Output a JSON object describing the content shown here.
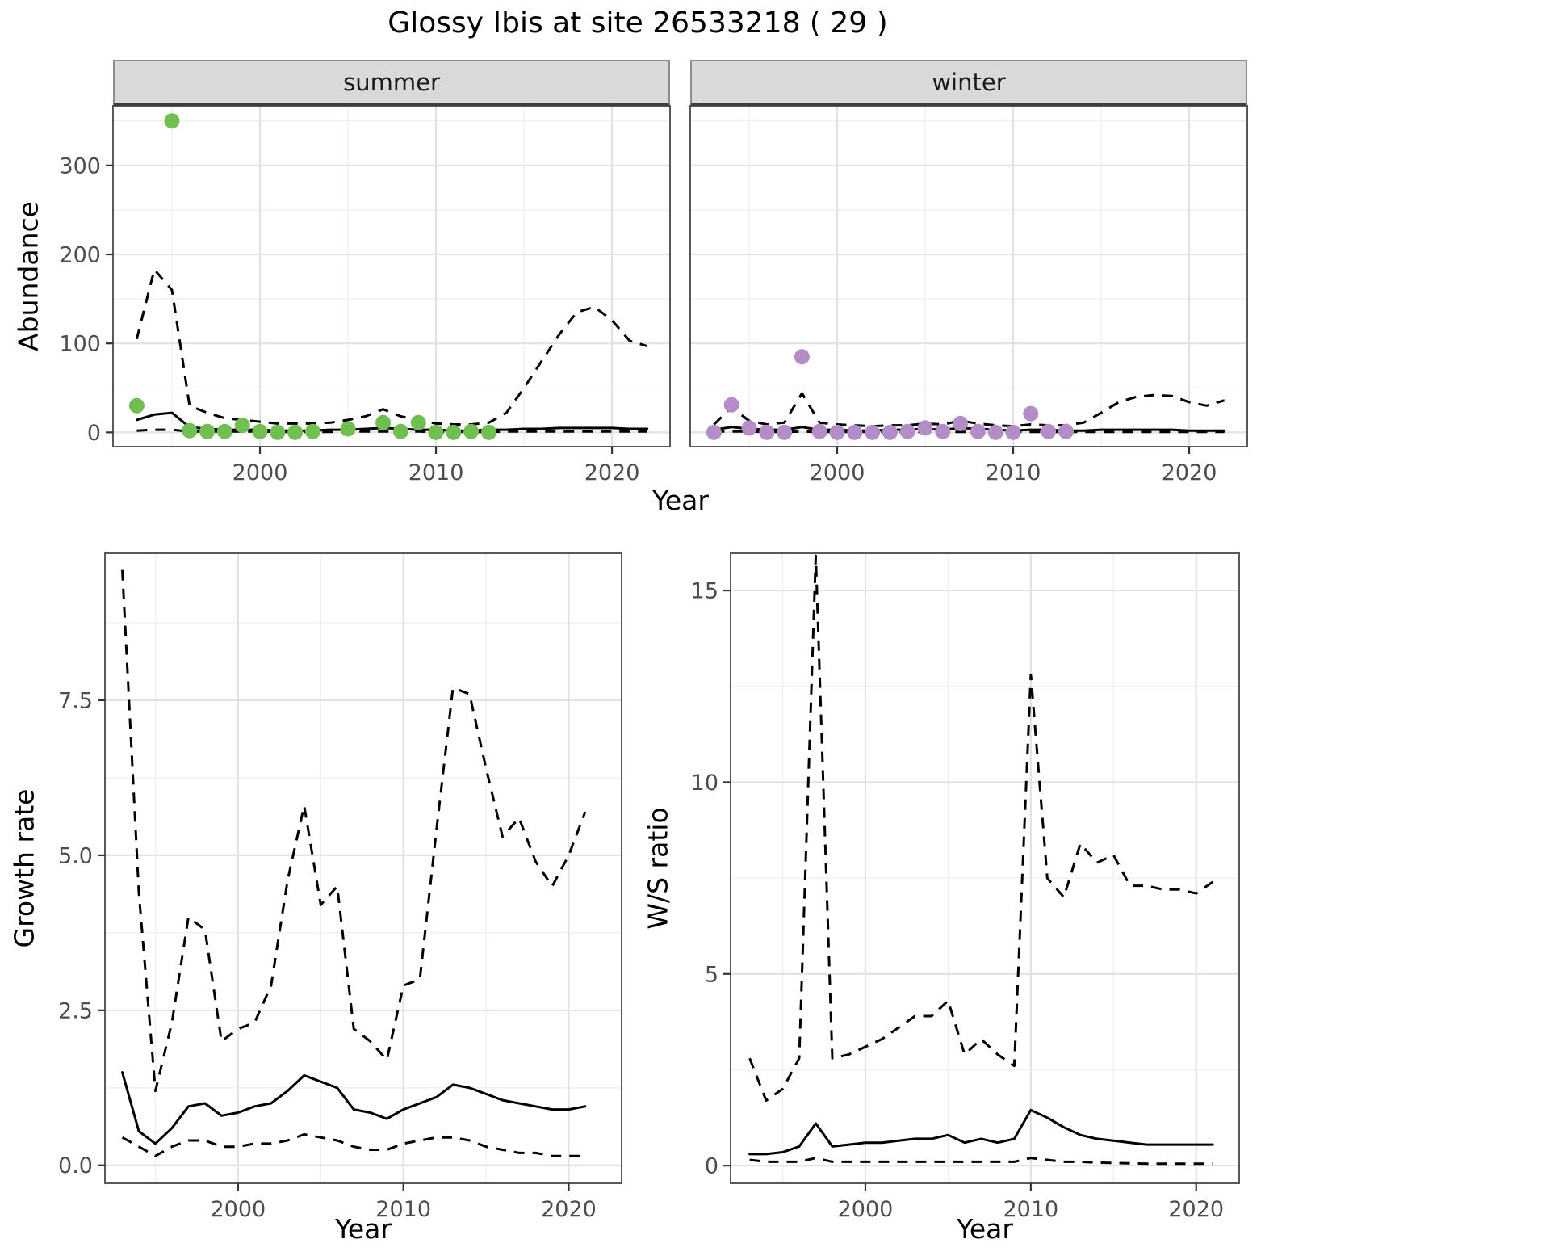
{
  "title": "Glossy Ibis at site 26533218 ( 29 )",
  "abundance": {
    "ylabel": "Abundance",
    "xlabel": "Year",
    "facets": [
      {
        "label": "summer"
      },
      {
        "label": "winter"
      }
    ]
  },
  "growth": {
    "ylabel": "Growth rate",
    "xlabel": "Year"
  },
  "ws": {
    "ylabel": "W/S ratio",
    "xlabel": "Year"
  },
  "colors": {
    "summer_points": "#70bf50",
    "winter_points": "#b48cc8",
    "fit_line": "#000000",
    "ci_line": "#000000",
    "strip_background": "#d9d9d9",
    "panel_border": "#595959",
    "grid_major": "#e2e2e2",
    "grid_minor": "#f0f0f0",
    "axis_text": "#4d4d4d"
  },
  "chart_data": [
    {
      "id": "abundance-summer",
      "type": "scatter",
      "facet": "summer",
      "xlabel": "Year",
      "ylabel": "Abundance",
      "xlim": [
        1991.65,
        2023.3
      ],
      "ylim": [
        -16,
        367
      ],
      "xticks": [
        2000,
        2010,
        2020
      ],
      "xtick_labels": [
        "2000",
        "2010",
        "2020"
      ],
      "xticks_minor": [
        1995,
        2005,
        2015
      ],
      "yticks": [
        0,
        100,
        200,
        300
      ],
      "ytick_labels": [
        "0",
        "100",
        "200",
        "300"
      ],
      "yticks_minor": [
        50,
        150,
        250,
        350
      ],
      "grid": "major+minor",
      "legend": "none",
      "point_color": "#70bf50",
      "x": [
        1993,
        1994,
        1995,
        1996,
        1997,
        1998,
        1999,
        2000,
        2001,
        2002,
        2003,
        2004,
        2005,
        2006,
        2007,
        2008,
        2009,
        2010,
        2011,
        2012,
        2013,
        2014,
        2015,
        2016,
        2017,
        2018,
        2019,
        2020,
        2021,
        2022
      ],
      "fit": [
        14,
        20,
        22,
        6,
        4,
        3,
        3,
        3,
        2,
        2,
        2,
        3,
        3,
        4,
        5,
        4,
        3,
        3,
        2,
        2,
        3,
        3,
        4,
        4,
        5,
        5,
        5,
        5,
        4,
        4
      ],
      "upper_ci": [
        105,
        183,
        160,
        30,
        22,
        16,
        14,
        12,
        10,
        10,
        10,
        11,
        14,
        18,
        26,
        18,
        14,
        10,
        9,
        9,
        11,
        22,
        50,
        80,
        110,
        135,
        141,
        126,
        103,
        97
      ],
      "lower_ci": [
        2,
        3,
        3,
        1,
        1,
        1,
        1,
        1,
        0.5,
        0.5,
        0.5,
        0.5,
        1,
        1,
        1,
        1,
        1,
        0.5,
        0.5,
        0.5,
        0.5,
        1,
        1,
        1,
        1,
        1,
        1,
        1,
        1,
        1
      ],
      "observations": {
        "x": [
          1993,
          1995,
          1996,
          1997,
          1998,
          1999,
          2000,
          2001,
          2002,
          2003,
          2005,
          2007,
          2008,
          2009,
          2010,
          2011,
          2012,
          2013
        ],
        "y": [
          30,
          350,
          2,
          1,
          1,
          8,
          1,
          0,
          0,
          1,
          4,
          11,
          1,
          11,
          0,
          0,
          1,
          0
        ]
      }
    },
    {
      "id": "abundance-winter",
      "type": "scatter",
      "facet": "winter",
      "xlabel": "Year",
      "ylabel": "Abundance",
      "xlim": [
        1991.65,
        2023.3
      ],
      "ylim": [
        -16,
        367
      ],
      "xticks": [
        2000,
        2010,
        2020
      ],
      "xtick_labels": [
        "2000",
        "2010",
        "2020"
      ],
      "xticks_minor": [
        1995,
        2005,
        2015
      ],
      "yticks": [
        0,
        100,
        200,
        300
      ],
      "ytick_labels": [
        "0",
        "100",
        "200",
        "300"
      ],
      "yticks_minor": [
        50,
        150,
        250,
        350
      ],
      "grid": "major+minor",
      "legend": "none",
      "point_color": "#b48cc8",
      "x": [
        1993,
        1994,
        1995,
        1996,
        1997,
        1998,
        1999,
        2000,
        2001,
        2002,
        2003,
        2004,
        2005,
        2006,
        2007,
        2008,
        2009,
        2010,
        2011,
        2012,
        2013,
        2014,
        2015,
        2016,
        2017,
        2018,
        2019,
        2020,
        2021,
        2022
      ],
      "fit": [
        3,
        6,
        4,
        3,
        3,
        6,
        3,
        3,
        2,
        2,
        3,
        3,
        4,
        3,
        5,
        4,
        3,
        2,
        3,
        3,
        2,
        2,
        3,
        3,
        3,
        3,
        3,
        2,
        2,
        2
      ],
      "upper_ci": [
        9,
        28,
        13,
        9,
        11,
        44,
        11,
        9,
        8,
        7,
        8,
        8,
        10,
        9,
        13,
        10,
        8,
        7,
        9,
        8,
        8,
        11,
        22,
        34,
        40,
        42,
        41,
        34,
        30,
        36
      ],
      "lower_ci": [
        1,
        1,
        1,
        0.5,
        0.5,
        1,
        0.5,
        0.5,
        0.5,
        0.5,
        0.5,
        0.5,
        0.5,
        0.5,
        0.5,
        0.5,
        0.5,
        0.5,
        0.5,
        0.5,
        0.5,
        0.5,
        0.5,
        0.5,
        0.5,
        0.5,
        0.5,
        0.5,
        0.5,
        0.5
      ],
      "observations": {
        "x": [
          1993,
          1994,
          1995,
          1996,
          1997,
          1998,
          1999,
          2000,
          2001,
          2002,
          2003,
          2004,
          2005,
          2006,
          2007,
          2008,
          2009,
          2010,
          2011,
          2012,
          2013
        ],
        "y": [
          0,
          31,
          5,
          0,
          0,
          85,
          1,
          0,
          0,
          0,
          0,
          1,
          5,
          1,
          10,
          1,
          0,
          0,
          21,
          1,
          1
        ]
      }
    },
    {
      "id": "growth-rate",
      "type": "line",
      "xlabel": "Year",
      "ylabel": "Growth rate",
      "xlim": [
        1991.95,
        2023.2
      ],
      "ylim": [
        -0.29,
        9.87
      ],
      "xticks": [
        2000,
        2010,
        2020
      ],
      "xtick_labels": [
        "2000",
        "2010",
        "2020"
      ],
      "xticks_minor": [
        1995,
        2005,
        2015
      ],
      "yticks": [
        0,
        2.5,
        5,
        7.5
      ],
      "ytick_labels": [
        "0.0",
        "2.5",
        "5.0",
        "7.5"
      ],
      "yticks_minor": [
        1.25,
        3.75,
        6.25,
        8.75
      ],
      "grid": "major+minor",
      "legend": "none",
      "x": [
        1993,
        1994,
        1995,
        1996,
        1997,
        1998,
        1999,
        2000,
        2001,
        2002,
        2003,
        2004,
        2005,
        2006,
        2007,
        2008,
        2009,
        2010,
        2011,
        2012,
        2013,
        2014,
        2015,
        2016,
        2017,
        2018,
        2019,
        2020,
        2021
      ],
      "fit": [
        1.5,
        0.55,
        0.35,
        0.6,
        0.95,
        1.0,
        0.8,
        0.85,
        0.95,
        1.0,
        1.2,
        1.45,
        1.35,
        1.25,
        0.9,
        0.85,
        0.75,
        0.9,
        1.0,
        1.1,
        1.3,
        1.25,
        1.15,
        1.05,
        1.0,
        0.95,
        0.9,
        0.9,
        0.95
      ],
      "upper_ci": [
        9.6,
        4.4,
        1.2,
        2.3,
        4.0,
        3.8,
        2.0,
        2.2,
        2.3,
        2.9,
        4.6,
        5.8,
        4.2,
        4.5,
        2.2,
        2.0,
        1.7,
        2.9,
        3.0,
        5.4,
        7.7,
        7.6,
        6.4,
        5.3,
        5.6,
        4.9,
        4.5,
        5.0,
        5.7
      ],
      "lower_ci": [
        0.45,
        0.3,
        0.15,
        0.3,
        0.4,
        0.4,
        0.3,
        0.3,
        0.35,
        0.35,
        0.4,
        0.5,
        0.45,
        0.4,
        0.3,
        0.25,
        0.25,
        0.35,
        0.4,
        0.45,
        0.45,
        0.4,
        0.3,
        0.25,
        0.2,
        0.2,
        0.15,
        0.15,
        0.15
      ]
    },
    {
      "id": "ws-ratio",
      "type": "line",
      "xlabel": "Year",
      "ylabel": "W/S ratio",
      "xlim": [
        1991.85,
        2022.6
      ],
      "ylim": [
        -0.46,
        15.97
      ],
      "xticks": [
        2000,
        2010,
        2020
      ],
      "xtick_labels": [
        "2000",
        "2010",
        "2020"
      ],
      "xticks_minor": [
        1995,
        2005,
        2015
      ],
      "yticks": [
        0,
        5,
        10,
        15
      ],
      "ytick_labels": [
        "0",
        "5",
        "10",
        "15"
      ],
      "yticks_minor": [
        2.5,
        7.5,
        12.5
      ],
      "grid": "major+minor",
      "legend": "none",
      "x": [
        1993,
        1994,
        1995,
        1996,
        1997,
        1998,
        1999,
        2000,
        2001,
        2002,
        2003,
        2004,
        2005,
        2006,
        2007,
        2008,
        2009,
        2010,
        2011,
        2012,
        2013,
        2014,
        2015,
        2016,
        2017,
        2018,
        2019,
        2020,
        2021
      ],
      "fit": [
        0.3,
        0.3,
        0.35,
        0.5,
        1.1,
        0.5,
        0.55,
        0.6,
        0.6,
        0.65,
        0.7,
        0.7,
        0.8,
        0.6,
        0.7,
        0.6,
        0.7,
        1.45,
        1.25,
        1.0,
        0.8,
        0.7,
        0.65,
        0.6,
        0.55,
        0.55,
        0.55,
        0.55,
        0.55
      ],
      "upper_ci": [
        2.8,
        1.7,
        2.0,
        2.8,
        15.9,
        2.8,
        2.9,
        3.1,
        3.3,
        3.6,
        3.9,
        3.9,
        4.3,
        2.9,
        3.3,
        2.9,
        2.6,
        12.8,
        7.5,
        7.0,
        8.4,
        7.9,
        8.1,
        7.3,
        7.3,
        7.2,
        7.2,
        7.1,
        7.4
      ],
      "lower_ci": [
        0.15,
        0.1,
        0.1,
        0.1,
        0.2,
        0.1,
        0.1,
        0.1,
        0.1,
        0.1,
        0.1,
        0.1,
        0.1,
        0.1,
        0.1,
        0.1,
        0.1,
        0.2,
        0.15,
        0.1,
        0.1,
        0.08,
        0.07,
        0.06,
        0.05,
        0.05,
        0.05,
        0.05,
        0.05
      ]
    }
  ]
}
